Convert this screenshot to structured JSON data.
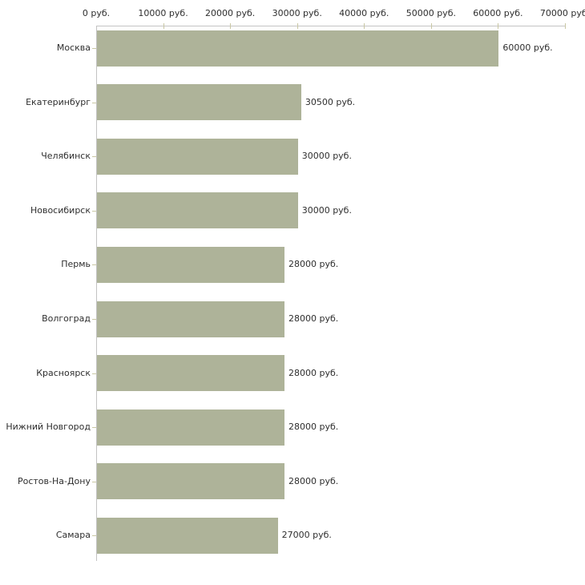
{
  "chart_data": {
    "type": "bar",
    "orientation": "horizontal",
    "title": "",
    "categories": [
      "Москва",
      "Екатеринбург",
      "Челябинск",
      "Новосибирск",
      "Пермь",
      "Волгоград",
      "Красноярск",
      "Нижний Новгород",
      "Ростов-На-Дону",
      "Самара"
    ],
    "values": [
      60000,
      30500,
      30000,
      30000,
      28000,
      28000,
      28000,
      28000,
      28000,
      27000
    ],
    "value_labels": [
      "60000 руб.",
      "30500 руб.",
      "30000 руб.",
      "30000 руб.",
      "28000 руб.",
      "28000 руб.",
      "28000 руб.",
      "28000 руб.",
      "28000 руб.",
      "27000 руб."
    ],
    "unit": "руб.",
    "x_axis": {
      "position": "top",
      "min": 0,
      "max": 70000,
      "tick_step": 10000,
      "tick_labels": [
        "0 руб.",
        "10000 руб.",
        "20000 руб.",
        "30000 руб.",
        "40000 руб.",
        "50000 руб.",
        "60000 руб.",
        "70000 руб."
      ]
    },
    "grid": false,
    "legend": false,
    "colors": {
      "bar": "#aeb399",
      "axis_line": "#c3c3c3",
      "tick": "#c9c7a4",
      "text": "#2e2e2e",
      "background": "#ffffff"
    }
  }
}
